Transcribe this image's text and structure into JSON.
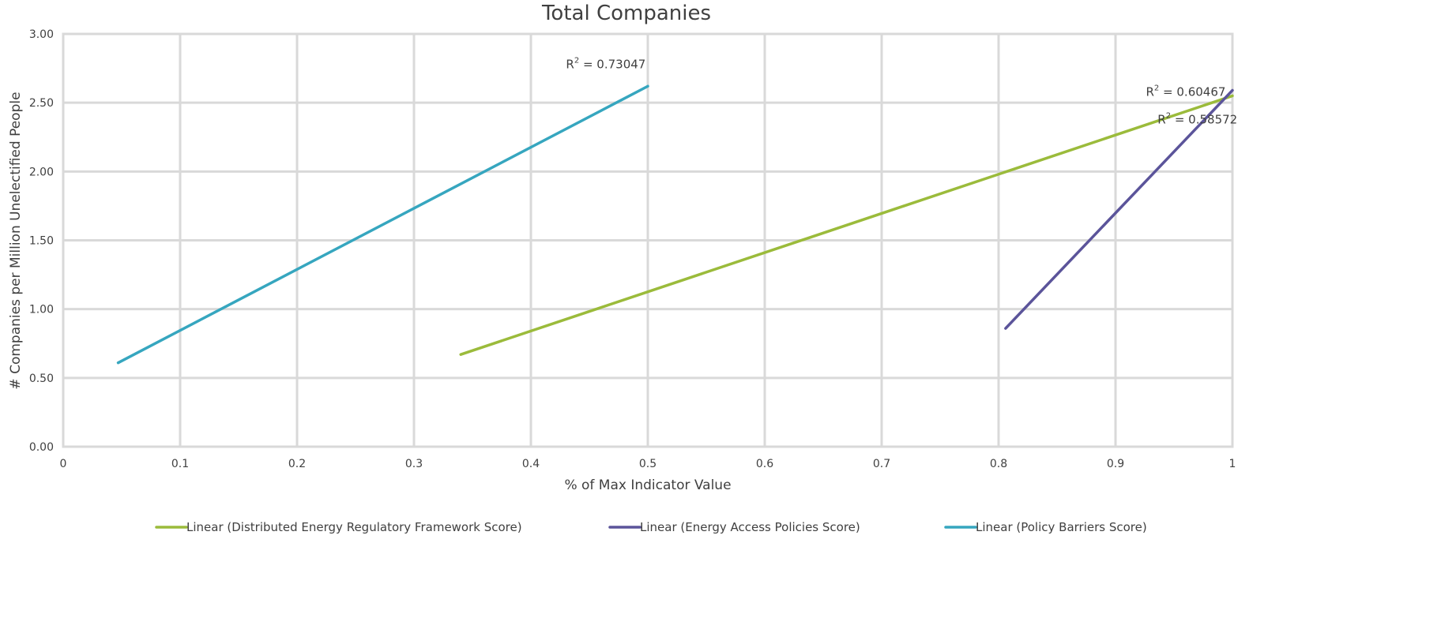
{
  "chart_data": {
    "type": "line",
    "title": "Total Companies",
    "xlabel": "% of Max Indicator Value",
    "ylabel": "# Companies per Million Unelectified People",
    "xlim": [
      0,
      1
    ],
    "ylim": [
      0,
      3
    ],
    "x_ticks": [
      0,
      0.1,
      0.2,
      0.3,
      0.4,
      0.5,
      0.6,
      0.7,
      0.8,
      0.9,
      1
    ],
    "x_tick_labels": [
      "0",
      "0.1",
      "0.2",
      "0.3",
      "0.4",
      "0.5",
      "0.6",
      "0.7",
      "0.8",
      "0.9",
      "1"
    ],
    "y_ticks": [
      0,
      0.5,
      1,
      1.5,
      2,
      2.5,
      3
    ],
    "y_tick_labels": [
      "0.00",
      "0.50",
      "1.00",
      "1.50",
      "2.00",
      "2.50",
      "3.00"
    ],
    "grid": true,
    "legend_position": "bottom",
    "series": [
      {
        "name": "Linear  (Distributed Energy Regulatory Framework Score)",
        "color": "#9bbb3b",
        "x": [
          0.34,
          1.0
        ],
        "y": [
          0.67,
          2.55
        ]
      },
      {
        "name": "Linear  (Energy Access Policies  Score)",
        "color": "#5b549a",
        "x": [
          0.806,
          1.0
        ],
        "y": [
          0.86,
          2.59
        ]
      },
      {
        "name": "Linear  (Policy Barriers Score)",
        "color": "#36a6bf",
        "x": [
          0.047,
          0.5
        ],
        "y": [
          0.61,
          2.62
        ]
      }
    ],
    "annotations": [
      {
        "base": "R",
        "sup": "2",
        "tail": " = 0.73047",
        "x": 0.43,
        "y": 2.75
      },
      {
        "base": "R",
        "sup": "2",
        "tail": " = 0.60467",
        "x": 0.926,
        "y": 2.55
      },
      {
        "base": "R",
        "sup": "2",
        "tail": " = 0.58572",
        "x": 0.936,
        "y": 2.35
      }
    ]
  }
}
